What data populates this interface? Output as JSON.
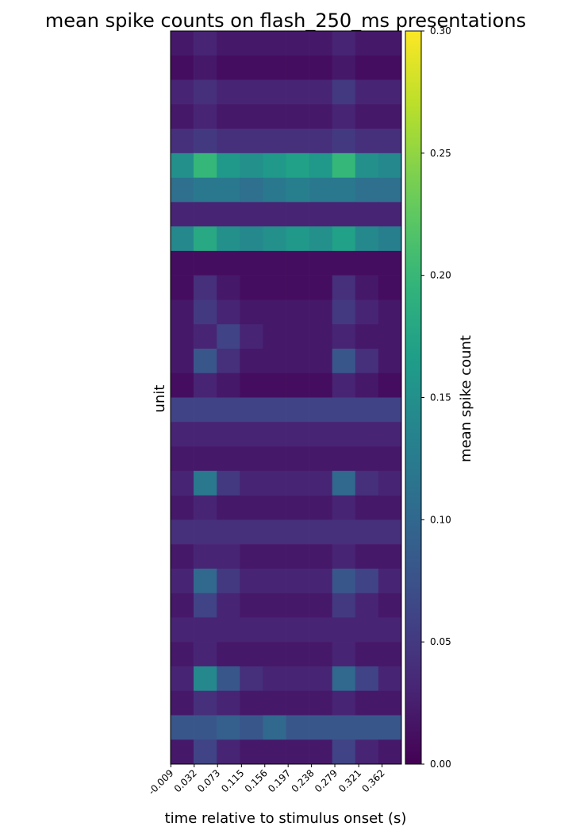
{
  "chart_data": {
    "type": "heatmap",
    "title": "mean spike counts on flash_250_ms presentations",
    "xlabel": "time relative to stimulus onset (s)",
    "ylabel": "unit",
    "colorbar_label": "mean spike count",
    "colormap": "viridis",
    "xlim": [
      -0.0095,
      0.396
    ],
    "xticks": [
      -0.009,
      0.032,
      0.073,
      0.115,
      0.156,
      0.197,
      0.238,
      0.279,
      0.321,
      0.362
    ],
    "xbins": [
      -0.0095,
      0.031,
      0.0716,
      0.1122,
      0.1527,
      0.1933,
      0.2338,
      0.2744,
      0.3149,
      0.3555,
      0.396
    ],
    "zlim": [
      0,
      0.3
    ],
    "zticks": [
      {
        "value": 0,
        "label": "0.00"
      },
      {
        "value": 0.05,
        "label": "0.05"
      },
      {
        "value": 0.1,
        "label": "0.10"
      },
      {
        "value": 0.15,
        "label": "0.15"
      },
      {
        "value": 0.2,
        "label": "0.20"
      },
      {
        "value": 0.25,
        "label": "0.25"
      },
      {
        "value": 0.3,
        "label": "0.30"
      }
    ],
    "z": [
      [
        0.02,
        0.03,
        0.02,
        0.02,
        0.02,
        0.02,
        0.02,
        0.03,
        0.02,
        0.02
      ],
      [
        0.01,
        0.02,
        0.01,
        0.01,
        0.01,
        0.01,
        0.01,
        0.02,
        0.01,
        0.01
      ],
      [
        0.03,
        0.04,
        0.03,
        0.03,
        0.03,
        0.03,
        0.03,
        0.05,
        0.03,
        0.03
      ],
      [
        0.02,
        0.03,
        0.02,
        0.02,
        0.02,
        0.02,
        0.02,
        0.03,
        0.02,
        0.02
      ],
      [
        0.04,
        0.05,
        0.04,
        0.04,
        0.04,
        0.04,
        0.04,
        0.05,
        0.04,
        0.04
      ],
      [
        0.15,
        0.2,
        0.16,
        0.15,
        0.16,
        0.17,
        0.16,
        0.2,
        0.15,
        0.14
      ],
      [
        0.11,
        0.12,
        0.12,
        0.11,
        0.12,
        0.13,
        0.12,
        0.12,
        0.11,
        0.11
      ],
      [
        0.03,
        0.03,
        0.03,
        0.03,
        0.03,
        0.03,
        0.03,
        0.03,
        0.03,
        0.03
      ],
      [
        0.14,
        0.18,
        0.15,
        0.14,
        0.15,
        0.16,
        0.15,
        0.17,
        0.14,
        0.13
      ],
      [
        0.01,
        0.01,
        0.01,
        0.01,
        0.01,
        0.01,
        0.01,
        0.01,
        0.01,
        0.01
      ],
      [
        0.01,
        0.04,
        0.02,
        0.01,
        0.01,
        0.01,
        0.01,
        0.04,
        0.02,
        0.01
      ],
      [
        0.02,
        0.05,
        0.03,
        0.02,
        0.02,
        0.02,
        0.02,
        0.05,
        0.03,
        0.02
      ],
      [
        0.02,
        0.03,
        0.06,
        0.03,
        0.02,
        0.02,
        0.02,
        0.03,
        0.02,
        0.02
      ],
      [
        0.02,
        0.08,
        0.04,
        0.02,
        0.02,
        0.02,
        0.02,
        0.08,
        0.04,
        0.02
      ],
      [
        0.01,
        0.03,
        0.02,
        0.01,
        0.01,
        0.01,
        0.01,
        0.03,
        0.02,
        0.01
      ],
      [
        0.06,
        0.06,
        0.06,
        0.06,
        0.06,
        0.06,
        0.06,
        0.06,
        0.06,
        0.06
      ],
      [
        0.03,
        0.03,
        0.03,
        0.03,
        0.03,
        0.03,
        0.03,
        0.03,
        0.03,
        0.03
      ],
      [
        0.02,
        0.02,
        0.02,
        0.02,
        0.02,
        0.02,
        0.02,
        0.02,
        0.02,
        0.02
      ],
      [
        0.03,
        0.12,
        0.05,
        0.03,
        0.03,
        0.03,
        0.03,
        0.1,
        0.04,
        0.03
      ],
      [
        0.02,
        0.03,
        0.02,
        0.02,
        0.02,
        0.02,
        0.02,
        0.03,
        0.02,
        0.02
      ],
      [
        0.04,
        0.04,
        0.04,
        0.04,
        0.04,
        0.04,
        0.04,
        0.04,
        0.04,
        0.04
      ],
      [
        0.02,
        0.03,
        0.03,
        0.02,
        0.02,
        0.02,
        0.02,
        0.03,
        0.02,
        0.02
      ],
      [
        0.03,
        0.1,
        0.05,
        0.03,
        0.03,
        0.03,
        0.03,
        0.08,
        0.06,
        0.03
      ],
      [
        0.02,
        0.06,
        0.03,
        0.02,
        0.02,
        0.02,
        0.02,
        0.05,
        0.03,
        0.02
      ],
      [
        0.03,
        0.03,
        0.03,
        0.03,
        0.03,
        0.03,
        0.03,
        0.03,
        0.03,
        0.03
      ],
      [
        0.02,
        0.03,
        0.02,
        0.02,
        0.02,
        0.02,
        0.02,
        0.03,
        0.02,
        0.02
      ],
      [
        0.03,
        0.14,
        0.08,
        0.04,
        0.03,
        0.03,
        0.03,
        0.1,
        0.06,
        0.03
      ],
      [
        0.02,
        0.04,
        0.03,
        0.02,
        0.02,
        0.02,
        0.02,
        0.03,
        0.02,
        0.02
      ],
      [
        0.08,
        0.08,
        0.09,
        0.08,
        0.1,
        0.08,
        0.08,
        0.08,
        0.08,
        0.08
      ],
      [
        0.02,
        0.06,
        0.03,
        0.02,
        0.02,
        0.02,
        0.02,
        0.06,
        0.03,
        0.02
      ]
    ]
  }
}
